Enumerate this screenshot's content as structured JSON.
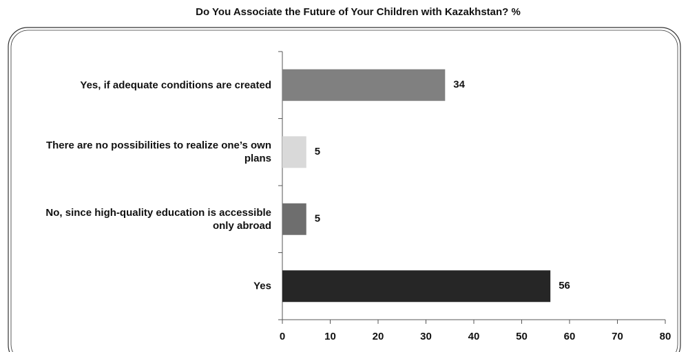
{
  "chart_data": {
    "type": "bar",
    "orientation": "horizontal",
    "title": "Do You Associate the Future of Your Children with Kazakhstan? %",
    "categories": [
      "Yes, if adequate conditions are created",
      "There are no possibilities to realize one’s own plans",
      "No, since high-quality education is accessible only abroad",
      "Yes"
    ],
    "values": [
      34,
      5,
      5,
      56
    ],
    "colors": [
      "#808080",
      "#d9d9d9",
      "#6e6e6e",
      "#262626"
    ],
    "xlim": [
      0,
      80
    ],
    "xticks": [
      0,
      10,
      20,
      30,
      40,
      50,
      60,
      70,
      80
    ],
    "grid": false
  }
}
